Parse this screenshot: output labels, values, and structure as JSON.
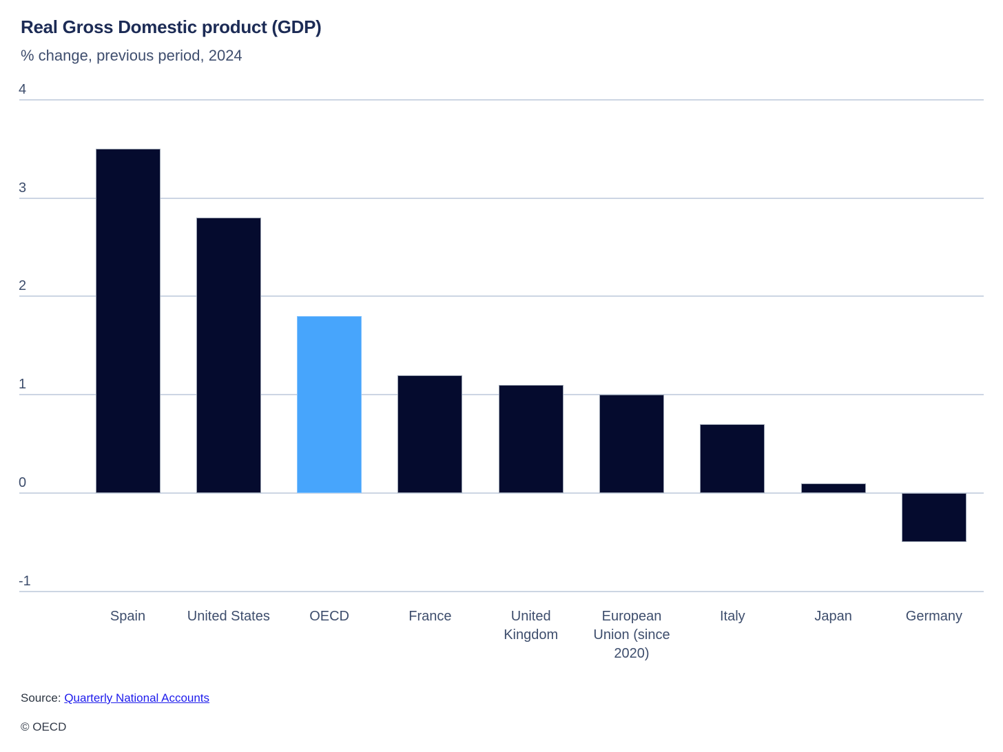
{
  "chart_data": {
    "type": "bar",
    "title": "Real Gross Domestic product (GDP)",
    "subtitle": "% change, previous period, 2024",
    "categories": [
      "Spain",
      "United States",
      "OECD",
      "France",
      "United Kingdom",
      "European Union (since 2020)",
      "Italy",
      "Japan",
      "Germany"
    ],
    "values": [
      3.5,
      2.8,
      1.8,
      1.2,
      1.1,
      1.0,
      0.7,
      0.1,
      -0.5
    ],
    "unit": "% change vs previous period",
    "highlight_category": "OECD",
    "highlight_index": 2,
    "ylim": [
      -1,
      4
    ],
    "yticks": [
      4,
      3,
      2,
      1,
      0,
      -1
    ],
    "grid": "horizontal",
    "legend": "none",
    "colors": {
      "bar": "#050b2e",
      "bar_border": "#9aa3b2",
      "highlight_bar": "#47a5fc",
      "highlight_bar_border": "#85c4fe",
      "gridline": "#ccd5e3",
      "title_text": "#1c2b55",
      "subtitle_text": "#3f4e6e",
      "axis_text": "#3d4d6c",
      "link": "#1d1bec"
    }
  },
  "footer": {
    "source_prefix": "Source: ",
    "source_link_label": "Quarterly National Accounts",
    "copyright": "© OECD"
  }
}
